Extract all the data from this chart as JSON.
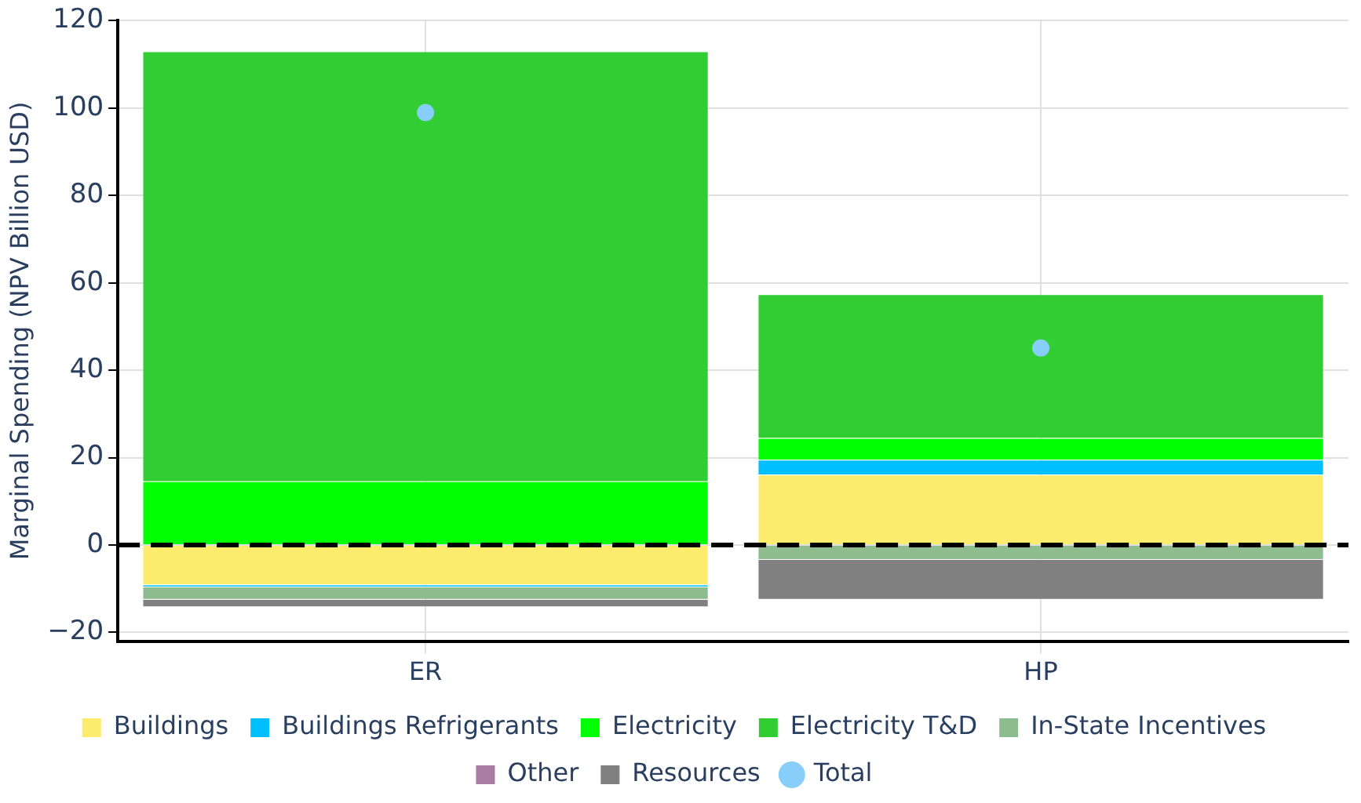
{
  "chart_data": {
    "type": "bar",
    "ylabel": "Marginal Spending (NPV Billion USD)",
    "categories": [
      "ER",
      "HP"
    ],
    "stacked": true,
    "series": [
      {
        "name": "Buildings",
        "color": "#fbec6d",
        "values": [
          -9.2,
          16.1
        ]
      },
      {
        "name": "Buildings Refrigerants",
        "color": "#00bfff",
        "values": [
          -0.5,
          3.4
        ]
      },
      {
        "name": "Electricity",
        "color": "#00ff00",
        "values": [
          14.6,
          5
        ]
      },
      {
        "name": "Electricity T&D",
        "color": "#32cd32",
        "values": [
          98.4,
          32.9
        ]
      },
      {
        "name": "In-State Incentives",
        "color": "#8fbc8f",
        "values": [
          -2.8,
          -3.4
        ]
      },
      {
        "name": "Other",
        "color": "#a97ca3",
        "values": [
          0,
          0
        ]
      },
      {
        "name": "Resources",
        "color": "#808080",
        "values": [
          -1.7,
          -9.1
        ]
      },
      {
        "name": "Total",
        "type": "scatter",
        "color": "#87cefa",
        "x": [
          "ER",
          "HP"
        ],
        "values": [
          99,
          45.1
        ]
      }
    ],
    "ylim": [
      -22,
      120
    ],
    "yticks": [
      {
        "value": -20,
        "label": "−20"
      },
      0,
      20,
      40,
      60,
      80,
      100,
      120
    ],
    "ref_lines": [
      {
        "axis": "y",
        "value": 0,
        "color": "#000000",
        "line_style": "dashed"
      }
    ],
    "grid": true,
    "legend": "bottom",
    "marker": "circle"
  }
}
